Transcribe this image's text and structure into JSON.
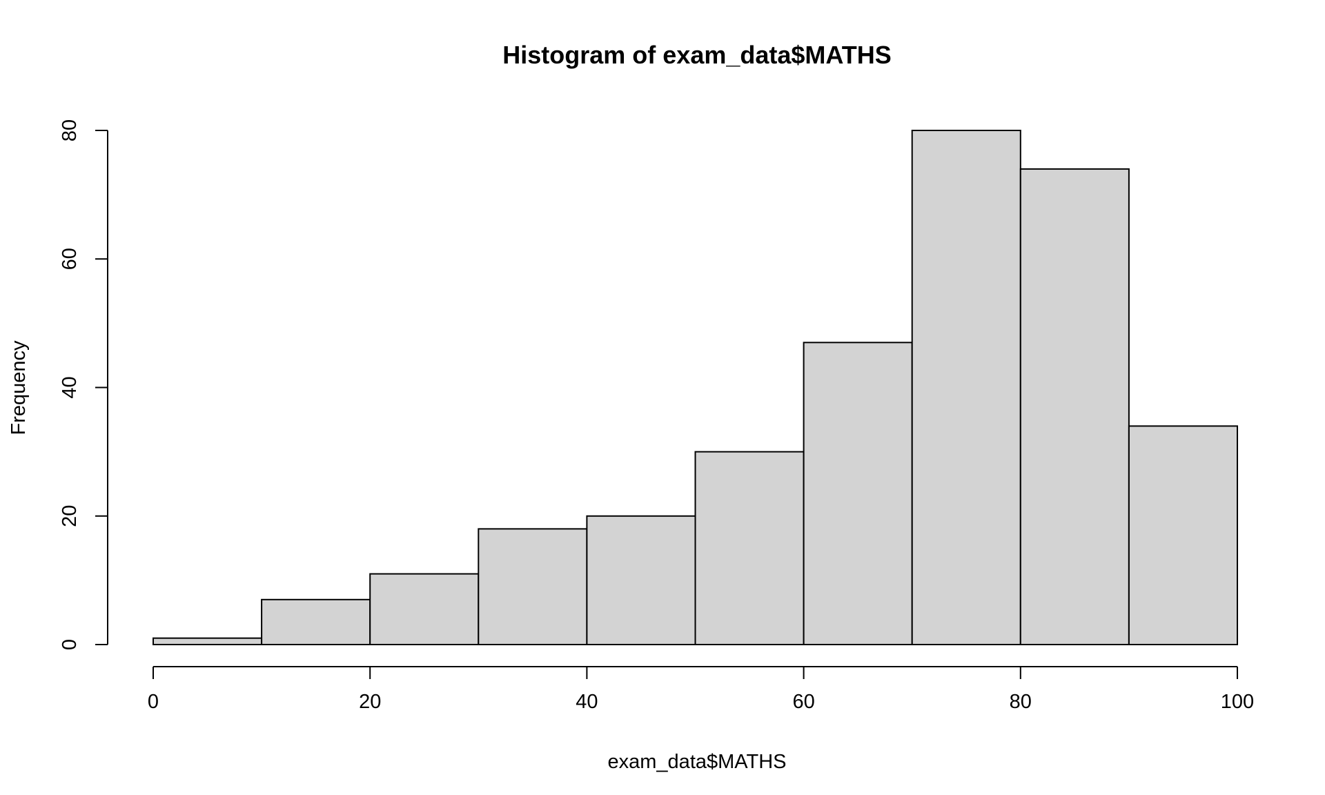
{
  "chart_data": {
    "type": "bar",
    "title": "Histogram of exam_data$MATHS",
    "xlabel": "exam_data$MATHS",
    "ylabel": "Frequency",
    "bins": [
      {
        "start": 0,
        "end": 10,
        "count": 1
      },
      {
        "start": 10,
        "end": 20,
        "count": 7
      },
      {
        "start": 20,
        "end": 30,
        "count": 11
      },
      {
        "start": 30,
        "end": 40,
        "count": 18
      },
      {
        "start": 40,
        "end": 50,
        "count": 20
      },
      {
        "start": 50,
        "end": 60,
        "count": 30
      },
      {
        "start": 60,
        "end": 70,
        "count": 47
      },
      {
        "start": 70,
        "end": 80,
        "count": 80
      },
      {
        "start": 80,
        "end": 90,
        "count": 74
      },
      {
        "start": 90,
        "end": 100,
        "count": 34
      }
    ],
    "xlim": [
      0,
      100
    ],
    "ylim": [
      0,
      80
    ],
    "x_ticks": [
      0,
      20,
      40,
      60,
      80,
      100
    ],
    "y_ticks": [
      0,
      20,
      40,
      60,
      80
    ],
    "bar_color": "#d3d3d3",
    "grid": false
  }
}
